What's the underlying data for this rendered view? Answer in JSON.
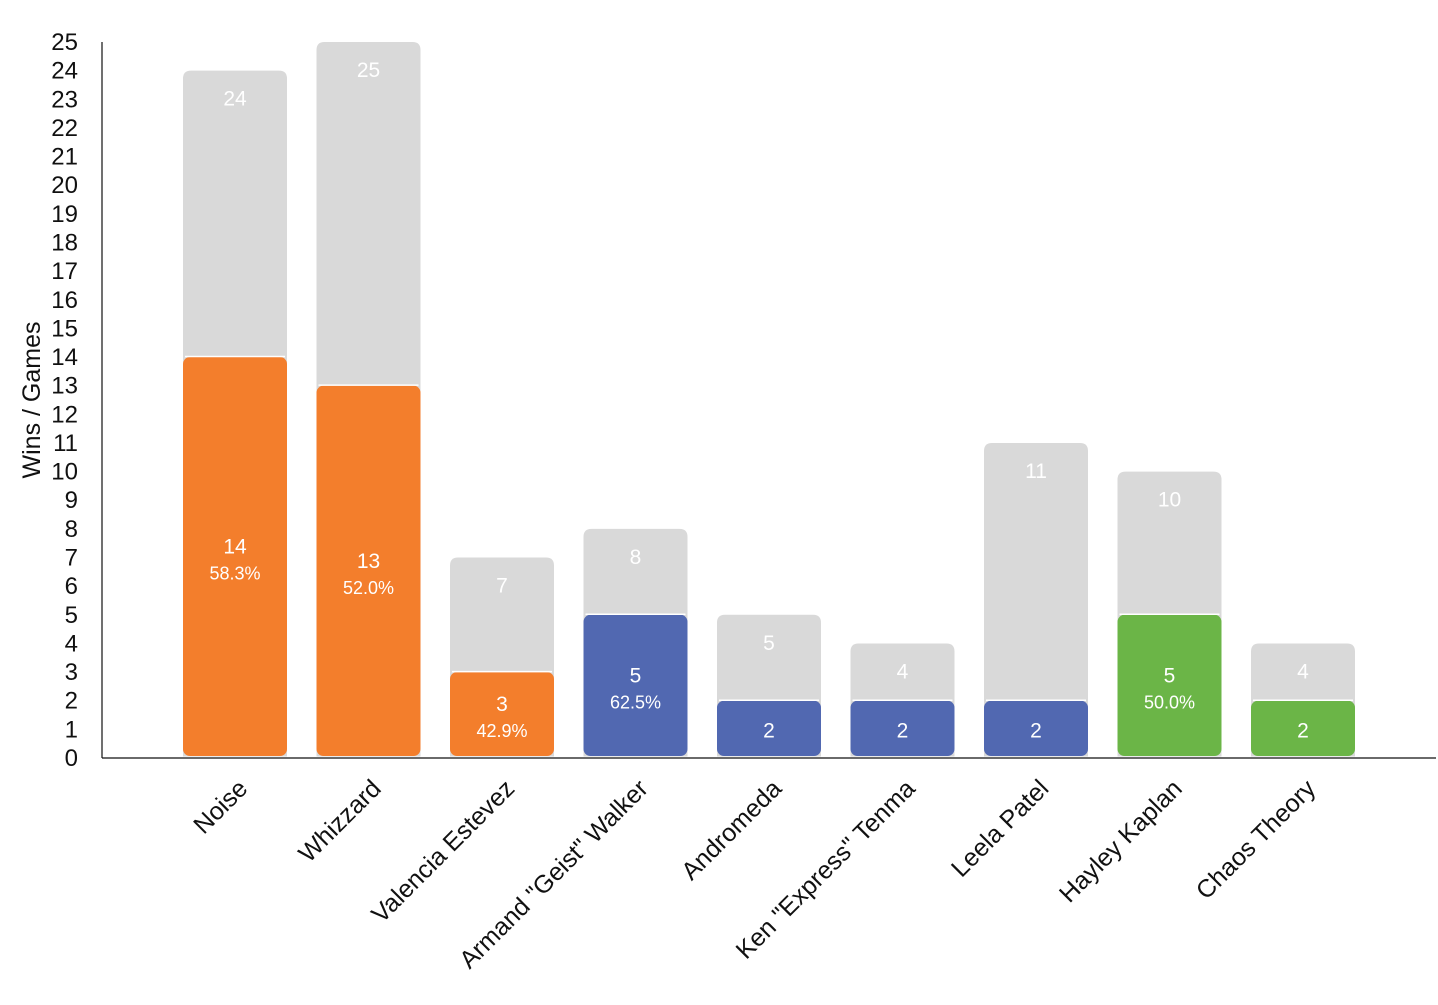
{
  "chart_data": {
    "type": "bar",
    "ylabel": "Wins / Games",
    "xlabel": "",
    "ylim": [
      0,
      25
    ],
    "y_ticks": [
      0,
      1,
      2,
      3,
      4,
      5,
      6,
      7,
      8,
      9,
      10,
      11,
      12,
      13,
      14,
      15,
      16,
      17,
      18,
      19,
      20,
      21,
      22,
      23,
      24,
      25
    ],
    "grid": false,
    "categories": [
      "Noise",
      "Whizzard",
      "Valencia Estevez",
      "Armand \"Geist\" Walker",
      "Andromeda",
      "Ken \"Express\" Tenma",
      "Leela Patel",
      "Hayley Kaplan",
      "Chaos Theory"
    ],
    "series": [
      {
        "values": [
          24,
          25,
          7,
          8,
          5,
          4,
          11,
          10,
          4
        ]
      },
      {
        "values": [
          14,
          13,
          3,
          5,
          2,
          2,
          2,
          5,
          2
        ]
      }
    ],
    "percent_labels": [
      "58.3%",
      "52.0%",
      "42.9%",
      "62.5%",
      "",
      "",
      "",
      "50.0%",
      ""
    ],
    "bar_colors": [
      "#f37e2c",
      "#f37e2c",
      "#f37e2c",
      "#5168b1",
      "#5168b1",
      "#5168b1",
      "#5168b1",
      "#6bb547",
      "#6bb547"
    ],
    "games_color": "#d9d9d9"
  }
}
